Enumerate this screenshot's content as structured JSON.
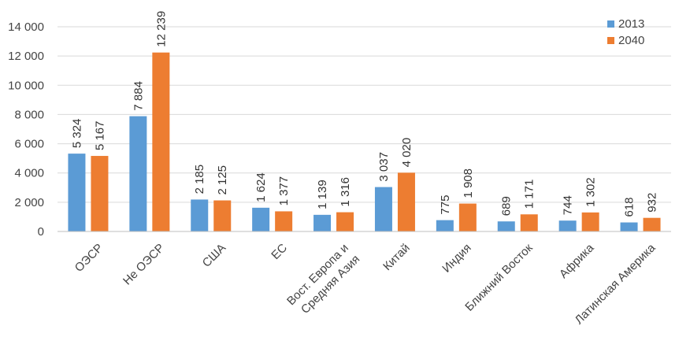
{
  "chart_data": {
    "type": "bar",
    "categories": [
      "ОЭСР",
      "Не ОЭСР",
      "США",
      "ЕС",
      "Вост. Европа и Средняя Азия",
      "Китай",
      "Индия",
      "Ближний Восток",
      "Африка",
      "Латинская Америка"
    ],
    "category_lines": [
      [
        "ОЭСР"
      ],
      [
        "Не ОЭСР"
      ],
      [
        "США"
      ],
      [
        "ЕС"
      ],
      [
        "Вост. Европа и",
        "Средняя Азия"
      ],
      [
        "Китай"
      ],
      [
        "Индия"
      ],
      [
        "Ближний Восток"
      ],
      [
        "Африка"
      ],
      [
        "Латинская Америка"
      ]
    ],
    "series": [
      {
        "name": "2013",
        "color": "#5b9bd5",
        "values": [
          5324,
          7884,
          2185,
          1624,
          1139,
          3037,
          775,
          689,
          744,
          618
        ],
        "labels": [
          "5 324",
          "7 884",
          "2 185",
          "1 624",
          "1 139",
          "3 037",
          "775",
          "689",
          "744",
          "618"
        ]
      },
      {
        "name": "2040",
        "color": "#ed7d31",
        "values": [
          5167,
          12239,
          2125,
          1377,
          1316,
          4020,
          1908,
          1171,
          1302,
          932
        ],
        "labels": [
          "5 167",
          "12 239",
          "2 125",
          "1 377",
          "1 316",
          "4 020",
          "1 908",
          "1 171",
          "1 302",
          "932"
        ]
      }
    ],
    "yticks": [
      0,
      2000,
      4000,
      6000,
      8000,
      10000,
      12000,
      14000
    ],
    "ytick_labels": [
      "0",
      "2 000",
      "4 000",
      "6 000",
      "8 000",
      "10 000",
      "12 000",
      "14 000"
    ],
    "ylim": [
      0,
      14000
    ],
    "grid": true,
    "legend_position": "top-right",
    "title": "",
    "xlabel": "",
    "ylabel": ""
  }
}
